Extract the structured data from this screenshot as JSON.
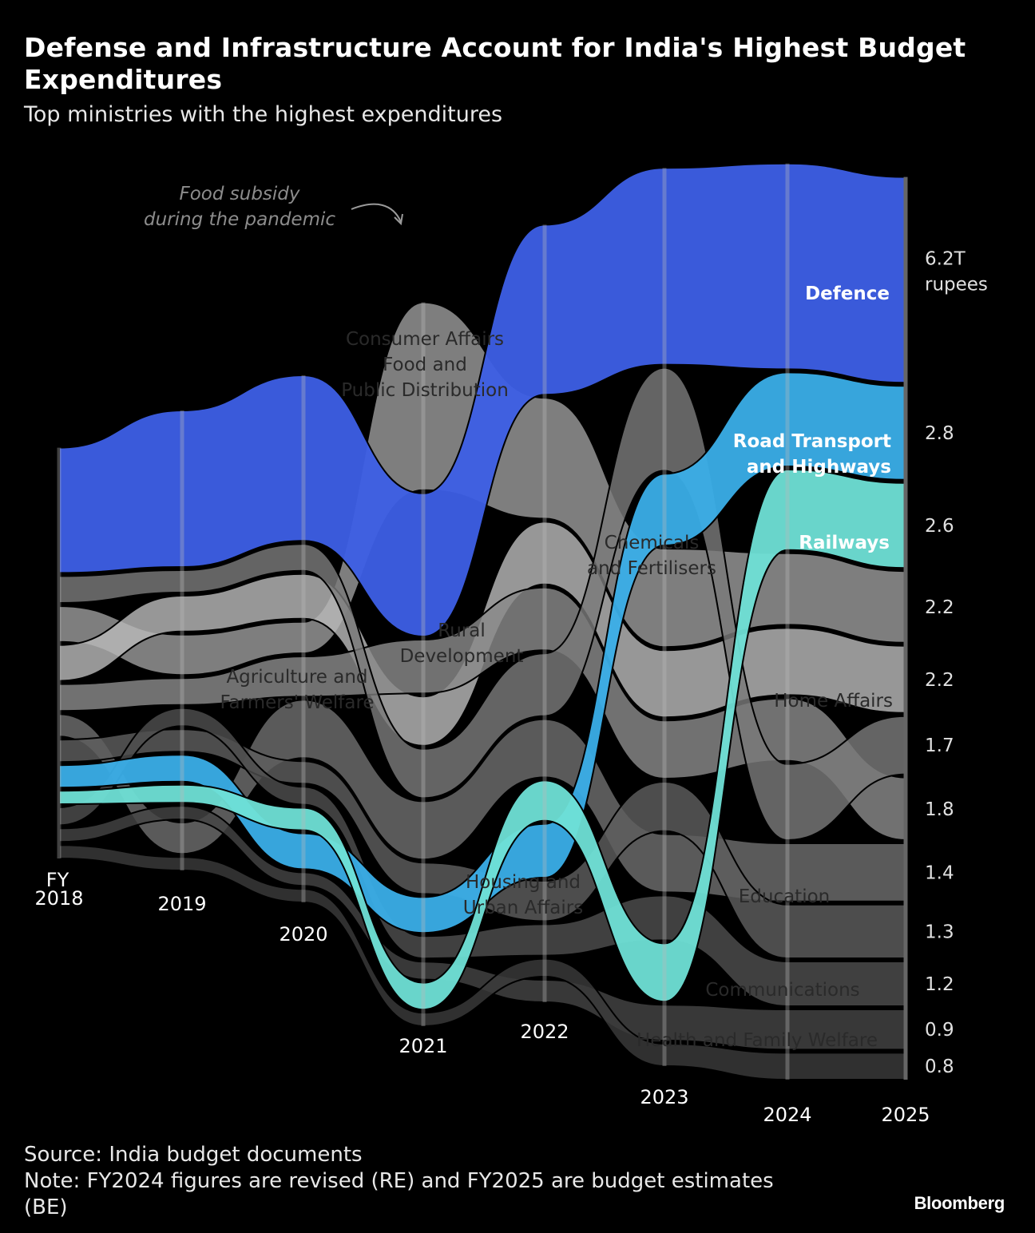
{
  "header": {
    "title": "Defense and Infrastructure Account for India's Highest Budget Expenditures",
    "subtitle": "Top ministries with the highest expenditures"
  },
  "footer": {
    "source": "Source: India budget documents",
    "note": "Note: FY2024 figures are revised (RE) and FY2025 are budget estimates (BE)",
    "brand": "Bloomberg"
  },
  "chart_data": {
    "type": "area",
    "subtype": "ranked bump/stream chart",
    "title": "Top ministries with the highest expenditures",
    "years": [
      "2018",
      "2019",
      "2020",
      "2021",
      "2022",
      "2023",
      "2024",
      "2025"
    ],
    "x_prefix": "FY",
    "unit": "T rupees",
    "unit_label": "rupees",
    "annotation": "Food subsidy during the pandemic",
    "annotation_lines": [
      "Food subsidy",
      "during the pandemic"
    ],
    "series": [
      {
        "name": "Defence",
        "label_lines": [
          "Defence"
        ],
        "color": "#3d5fe6",
        "highlight": true,
        "value_2025": 6.2,
        "value_label": "6.2T",
        "widths": [
          2.8,
          3.5,
          3.7,
          3.2,
          3.8,
          4.4,
          4.6,
          4.6
        ],
        "ranks": [
          1,
          1,
          1,
          2,
          1,
          1,
          1,
          1
        ]
      },
      {
        "name": "Road Transport and Highways",
        "label_lines": [
          "Road Transport",
          "and Highways"
        ],
        "color": "#3aaee8",
        "highlight": true,
        "value_2025": 2.8,
        "value_label": "2.8",
        "widths": [
          0.5,
          0.6,
          0.8,
          0.8,
          1.2,
          1.6,
          2.1,
          2.1
        ],
        "ranks": [
          8,
          8,
          10,
          8,
          8,
          3,
          2,
          2
        ]
      },
      {
        "name": "Railways",
        "label_lines": [
          "Railways"
        ],
        "color": "#6fe0d6",
        "highlight": true,
        "value_2025": 2.6,
        "value_label": "2.6",
        "widths": [
          0.3,
          0.4,
          0.5,
          0.6,
          0.9,
          1.3,
          1.8,
          1.9
        ],
        "ranks": [
          9,
          9,
          9,
          11,
          7,
          10,
          3,
          3
        ]
      },
      {
        "name": "Consumer Affairs Food and Public Distribution",
        "label_lines": [
          "Consumer Affairs",
          "Food and",
          "Public Distribution"
        ],
        "color": "#9a9a9a",
        "highlight": false,
        "value_2025": 2.2,
        "value_label": "2.2",
        "widths": [
          0.8,
          0.9,
          0.7,
          4.2,
          2.7,
          2.2,
          1.6,
          1.6
        ],
        "ranks": [
          3,
          4,
          4,
          1,
          2,
          4,
          4,
          4
        ]
      },
      {
        "name": "Home Affairs",
        "label_lines": [
          "Home Affairs"
        ],
        "color": "#b8b8b8",
        "highlight": false,
        "value_2025": 2.2,
        "value_label": "2.2",
        "widths": [
          0.8,
          0.8,
          1.0,
          1.1,
          1.4,
          1.5,
          1.5,
          1.5
        ],
        "ranks": [
          4,
          3,
          3,
          4,
          3,
          5,
          5,
          5
        ]
      },
      {
        "name": "Rural Development",
        "label_lines": [
          "Rural",
          "Development"
        ],
        "color": "#8a8a8a",
        "highlight": false,
        "value_2025": 1.8,
        "value_label": "1.8",
        "widths": [
          0.6,
          0.6,
          0.9,
          1.2,
          1.4,
          1.3,
          1.4,
          1.4
        ],
        "ranks": [
          5,
          5,
          5,
          3,
          4,
          6,
          6,
          7
        ]
      },
      {
        "name": "Chemicals and Fertilisers",
        "label_lines": [
          "Chemicals",
          "and Fertilisers"
        ],
        "color": "#7a7a7a",
        "highlight": false,
        "value_2025": 1.7,
        "value_label": "1.7",
        "widths": [
          0.6,
          0.5,
          0.6,
          1.1,
          1.4,
          2.3,
          1.7,
          1.3
        ],
        "ranks": [
          2,
          2,
          2,
          5,
          5,
          2,
          7,
          6
        ]
      },
      {
        "name": "Agriculture and Farmers' Welfare",
        "label_lines": [
          "Agriculture and",
          "Farmers' Welfare"
        ],
        "color": "#6e6e6e",
        "highlight": false,
        "value_2025": 1.4,
        "value_label": "1.4",
        "widths": [
          0.5,
          0.7,
          1.3,
          1.3,
          1.3,
          1.3,
          1.3,
          1.3
        ],
        "ranks": [
          6,
          11,
          6,
          6,
          6,
          8,
          8,
          8
        ]
      },
      {
        "name": "Education",
        "label_lines": [
          "Education"
        ],
        "color": "#5e5e5e",
        "highlight": false,
        "value_2025": 1.3,
        "value_label": "1.3",
        "widths": [
          0.5,
          0.5,
          0.5,
          0.7,
          0.9,
          1.1,
          1.2,
          1.2
        ],
        "ranks": [
          7,
          7,
          7,
          7,
          9,
          7,
          9,
          9
        ]
      },
      {
        "name": "Housing and Urban Affairs",
        "label_lines": [
          "Housing and",
          "Urban Affairs"
        ],
        "color": "#4e4e4e",
        "highlight": false,
        "value_2025": 1.2,
        "value_label": "1.2",
        "widths": [
          0.4,
          0.4,
          0.4,
          0.5,
          0.7,
          1.0,
          1.0,
          1.0
        ],
        "ranks": [
          10,
          6,
          8,
          9,
          10,
          9,
          10,
          10
        ]
      },
      {
        "name": "Communications",
        "label_lines": [
          "Communications"
        ],
        "color": "#444444",
        "highlight": false,
        "value_2025": 0.9,
        "value_label": "0.9",
        "widths": [
          0.3,
          0.3,
          0.3,
          0.4,
          0.5,
          0.8,
          0.9,
          0.9
        ],
        "ranks": [
          11,
          10,
          11,
          10,
          12,
          11,
          11,
          11
        ]
      },
      {
        "name": "Health and Family Welfare",
        "label_lines": [
          "Health and Family Welfare"
        ],
        "color": "#3a3a3a",
        "highlight": false,
        "value_2025": 0.8,
        "value_label": "0.8",
        "widths": [
          0.3,
          0.3,
          0.3,
          0.3,
          0.4,
          0.5,
          0.6,
          0.6
        ],
        "ranks": [
          12,
          12,
          12,
          12,
          11,
          12,
          12,
          12
        ]
      }
    ]
  }
}
